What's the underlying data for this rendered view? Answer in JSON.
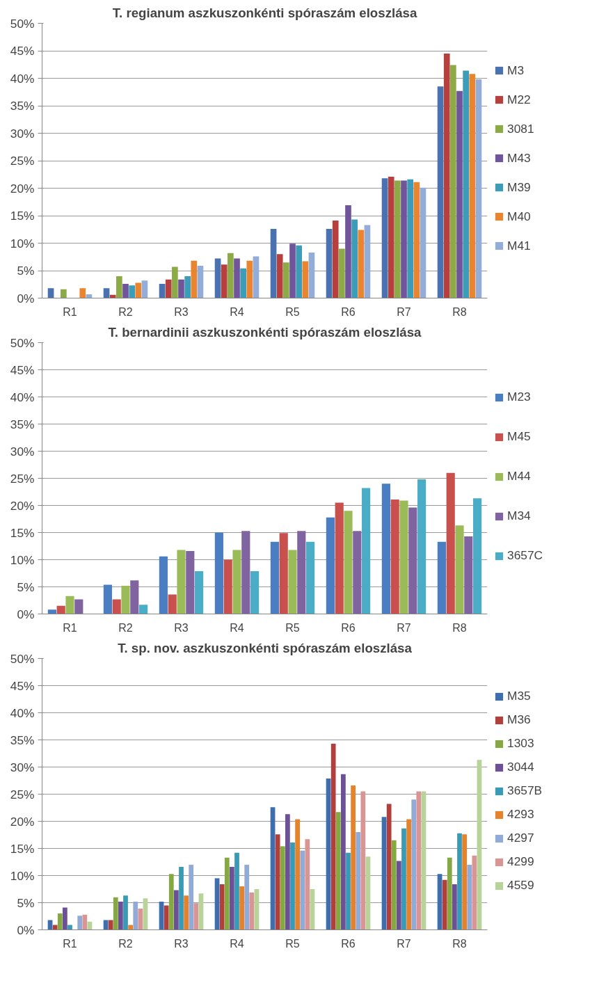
{
  "chart_data": [
    {
      "type": "bar",
      "title": "T. regianum aszkuszonkénti spóraszám eloszlása",
      "categories": [
        "R1",
        "R2",
        "R3",
        "R4",
        "R5",
        "R6",
        "R7",
        "R8"
      ],
      "series": [
        {
          "name": "M3",
          "color": "#4a72b0",
          "values": [
            1.8,
            1.8,
            2.6,
            7.2,
            12.6,
            12.6,
            21.8,
            38.5
          ]
        },
        {
          "name": "M22",
          "color": "#b5403d",
          "values": [
            0,
            0.6,
            3.4,
            6.1,
            8.0,
            14.1,
            22.1,
            44.5
          ]
        },
        {
          "name": "3081",
          "color": "#8cab46",
          "values": [
            1.6,
            4.0,
            5.7,
            8.2,
            6.5,
            9.0,
            21.4,
            42.4
          ]
        },
        {
          "name": "M43",
          "color": "#71559b",
          "values": [
            0,
            2.6,
            3.4,
            7.2,
            9.9,
            16.9,
            21.4,
            37.7
          ]
        },
        {
          "name": "M39",
          "color": "#3d9cb8",
          "values": [
            0,
            2.3,
            4.0,
            5.4,
            9.6,
            14.3,
            21.6,
            41.4
          ]
        },
        {
          "name": "M40",
          "color": "#e9842f",
          "values": [
            1.8,
            2.8,
            6.8,
            6.8,
            6.7,
            12.4,
            21.1,
            40.8
          ]
        },
        {
          "name": "M41",
          "color": "#94acd8",
          "values": [
            0.7,
            3.2,
            5.9,
            7.6,
            8.3,
            13.3,
            20.1,
            39.8
          ]
        }
      ],
      "ylim": [
        0,
        50
      ],
      "yticks": [
        {
          "value": 0,
          "label": "0%"
        },
        {
          "value": 5,
          "label": "5%"
        },
        {
          "value": 10,
          "label": "10%"
        },
        {
          "value": 15,
          "label": "15%"
        },
        {
          "value": 20,
          "label": "20%"
        },
        {
          "value": 25,
          "label": "25%"
        },
        {
          "value": 30,
          "label": "30%"
        },
        {
          "value": 35,
          "label": "35%"
        },
        {
          "value": 40,
          "label": "40%"
        },
        {
          "value": 45,
          "label": "45%"
        },
        {
          "value": 50,
          "label": "50%"
        }
      ],
      "grid": "y",
      "legend": "right"
    },
    {
      "type": "bar",
      "title": "T. bernardinii aszkuszonkénti spóraszám eloszlása",
      "categories": [
        "R1",
        "R2",
        "R3",
        "R4",
        "R5",
        "R6",
        "R7",
        "R8"
      ],
      "series": [
        {
          "name": "M23",
          "color": "#4a7ec2",
          "values": [
            0.8,
            5.4,
            10.6,
            15.0,
            13.3,
            17.8,
            24.0,
            13.3
          ]
        },
        {
          "name": "M45",
          "color": "#c8504d",
          "values": [
            1.5,
            2.7,
            3.6,
            10.0,
            14.9,
            20.5,
            21.1,
            26.0
          ]
        },
        {
          "name": "M44",
          "color": "#9bbb59",
          "values": [
            3.3,
            5.2,
            11.8,
            11.8,
            11.8,
            19.0,
            20.9,
            16.3
          ]
        },
        {
          "name": "M34",
          "color": "#8064a2",
          "values": [
            2.7,
            6.2,
            11.6,
            15.3,
            15.3,
            15.3,
            19.6,
            14.3
          ]
        },
        {
          "name": "3657C",
          "color": "#4bacc6",
          "values": [
            0,
            1.7,
            7.9,
            7.9,
            13.3,
            23.2,
            24.8,
            21.3
          ]
        }
      ],
      "ylim": [
        0,
        50
      ],
      "yticks": [
        {
          "value": 0,
          "label": "0%"
        },
        {
          "value": 5,
          "label": "5%"
        },
        {
          "value": 10,
          "label": "10%"
        },
        {
          "value": 15,
          "label": "15%"
        },
        {
          "value": 20,
          "label": "20%"
        },
        {
          "value": 25,
          "label": "25%"
        },
        {
          "value": 30,
          "label": "30%"
        },
        {
          "value": 35,
          "label": "35%"
        },
        {
          "value": 40,
          "label": "40%"
        },
        {
          "value": 45,
          "label": "45%"
        },
        {
          "value": 50,
          "label": "50%"
        }
      ],
      "grid": "y",
      "legend": "right"
    },
    {
      "type": "bar",
      "title": "T. sp. nov. aszkuszonkénti spóraszám eloszlása",
      "categories": [
        "R1",
        "R2",
        "R3",
        "R4",
        "R5",
        "R6",
        "R7",
        "R8"
      ],
      "series": [
        {
          "name": "M35",
          "color": "#3f6eaf",
          "values": [
            1.8,
            1.8,
            5.2,
            9.5,
            22.6,
            27.9,
            20.8,
            10.3
          ]
        },
        {
          "name": "M36",
          "color": "#b0403b",
          "values": [
            0.9,
            1.8,
            4.5,
            8.4,
            17.6,
            34.3,
            23.2,
            9.2
          ]
        },
        {
          "name": "1303",
          "color": "#86a843",
          "values": [
            3.0,
            6.0,
            10.3,
            13.3,
            15.4,
            21.7,
            16.5,
            13.3
          ]
        },
        {
          "name": "3044",
          "color": "#6c5197",
          "values": [
            4.1,
            5.2,
            7.3,
            11.6,
            21.3,
            28.7,
            12.7,
            8.4
          ]
        },
        {
          "name": "3657B",
          "color": "#3a9ab5",
          "values": [
            0.9,
            6.3,
            11.6,
            14.2,
            16.1,
            14.2,
            18.7,
            17.8
          ]
        },
        {
          "name": "4293",
          "color": "#e5822c",
          "values": [
            0,
            0.9,
            6.3,
            8.0,
            20.4,
            26.6,
            20.4,
            17.6
          ]
        },
        {
          "name": "4297",
          "color": "#92aad6",
          "values": [
            2.6,
            5.2,
            12.0,
            12.0,
            14.6,
            18.0,
            24.0,
            12.0
          ]
        },
        {
          "name": "4299",
          "color": "#d99593",
          "values": [
            2.8,
            3.9,
            4.9,
            6.9,
            16.7,
            25.5,
            25.5,
            13.7
          ]
        },
        {
          "name": "4559",
          "color": "#b7d39a",
          "values": [
            1.5,
            5.8,
            6.7,
            7.5,
            7.5,
            13.5,
            25.5,
            31.3
          ]
        }
      ],
      "ylim": [
        0,
        50
      ],
      "yticks": [
        {
          "value": 0,
          "label": "0%"
        },
        {
          "value": 5,
          "label": "5%"
        },
        {
          "value": 10,
          "label": "10%"
        },
        {
          "value": 15,
          "label": "15%"
        },
        {
          "value": 20,
          "label": "20%"
        },
        {
          "value": 25,
          "label": "25%"
        },
        {
          "value": 30,
          "label": "30%"
        },
        {
          "value": 35,
          "label": "35%"
        },
        {
          "value": 40,
          "label": "40%"
        },
        {
          "value": 45,
          "label": "45%"
        },
        {
          "value": 50,
          "label": "50%"
        }
      ],
      "grid": "y",
      "legend": "right"
    }
  ]
}
